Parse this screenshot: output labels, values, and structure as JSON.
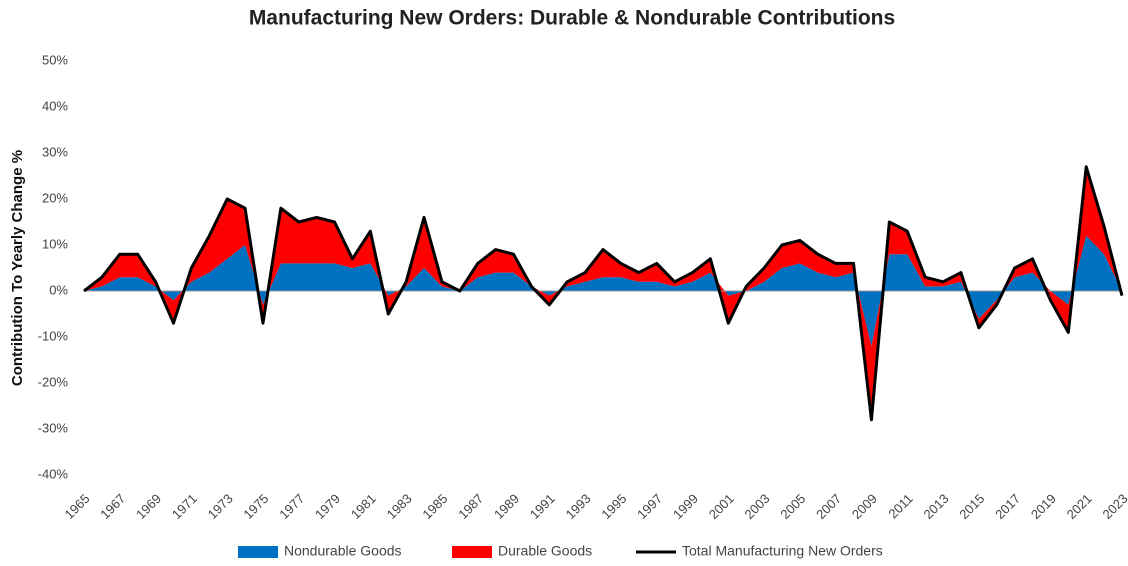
{
  "chart_data": {
    "type": "stacked-area-line",
    "title": "Manufacturing New Orders: Durable & Nondurable Contributions",
    "y_label": "Contribution To Yearly Change %",
    "x": [
      1965,
      1966,
      1967,
      1968,
      1969,
      1970,
      1971,
      1972,
      1973,
      1974,
      1975,
      1976,
      1977,
      1978,
      1979,
      1980,
      1981,
      1982,
      1983,
      1984,
      1985,
      1986,
      1987,
      1988,
      1989,
      1990,
      1991,
      1992,
      1993,
      1994,
      1995,
      1996,
      1997,
      1998,
      1999,
      2000,
      2001,
      2002,
      2003,
      2004,
      2005,
      2006,
      2007,
      2008,
      2009,
      2010,
      2011,
      2012,
      2013,
      2014,
      2015,
      2016,
      2017,
      2018,
      2019,
      2020,
      2021,
      2022,
      2023
    ],
    "series": [
      {
        "name": "Nondurable Goods",
        "type": "area",
        "color": "#0070c0",
        "values": [
          0,
          1,
          3,
          3,
          1,
          -2,
          2,
          4,
          7,
          10,
          -3,
          6,
          6,
          6,
          6,
          5,
          6,
          -1,
          1,
          5,
          1,
          0,
          3,
          4,
          4,
          1,
          -1,
          1,
          2,
          3,
          3,
          2,
          2,
          1,
          2,
          4,
          -1,
          0,
          2,
          5,
          6,
          4,
          3,
          4,
          -12,
          8,
          8,
          1,
          1,
          2,
          -6,
          -2,
          3,
          4,
          0,
          -3,
          12,
          8,
          0
        ]
      },
      {
        "name": "Durable Goods",
        "type": "area",
        "color": "#ff0000",
        "values": [
          0,
          2,
          5,
          5,
          1,
          -5,
          3,
          8,
          13,
          8,
          -4,
          12,
          9,
          10,
          9,
          2,
          7,
          -4,
          1,
          11,
          1,
          0,
          3,
          5,
          4,
          0,
          -2,
          1,
          2,
          6,
          3,
          2,
          4,
          1,
          2,
          3,
          -6,
          1,
          3,
          5,
          5,
          4,
          3,
          2,
          -16,
          7,
          5,
          2,
          1,
          2,
          -2,
          -1,
          2,
          3,
          -2,
          -6,
          15,
          6,
          -1
        ]
      },
      {
        "name": "Total Manufacturing New Orders",
        "type": "line",
        "color": "#000000",
        "values": [
          0,
          3,
          8,
          8,
          2,
          -7,
          5,
          12,
          20,
          18,
          -7,
          18,
          15,
          16,
          15,
          7,
          13,
          -5,
          2,
          16,
          2,
          0,
          6,
          9,
          8,
          1,
          -3,
          2,
          4,
          9,
          6,
          4,
          6,
          2,
          4,
          7,
          -7,
          1,
          5,
          10,
          11,
          8,
          6,
          6,
          -28,
          15,
          13,
          3,
          2,
          4,
          -8,
          -3,
          5,
          7,
          -2,
          -9,
          27,
          14,
          -1
        ]
      }
    ],
    "xlim": [
      1965,
      2023
    ],
    "xticks": [
      1965,
      1967,
      1969,
      1971,
      1973,
      1975,
      1977,
      1979,
      1981,
      1983,
      1985,
      1987,
      1989,
      1991,
      1993,
      1995,
      1997,
      1999,
      2001,
      2003,
      2005,
      2007,
      2009,
      2011,
      2013,
      2015,
      2017,
      2019,
      2021,
      2023
    ],
    "ylim": [
      -40,
      50
    ],
    "yticks": [
      {
        "value": -40,
        "label": "-40%"
      },
      {
        "value": -30,
        "label": "-30%"
      },
      {
        "value": -20,
        "label": "-20%"
      },
      {
        "value": -10,
        "label": "-10%"
      },
      {
        "value": 0,
        "label": "0%"
      },
      {
        "value": 10,
        "label": "10%"
      },
      {
        "value": 20,
        "label": "20%"
      },
      {
        "value": 30,
        "label": "30%"
      },
      {
        "value": 40,
        "label": "40%"
      },
      {
        "value": 50,
        "label": "50%"
      }
    ],
    "legend": "bottom"
  }
}
